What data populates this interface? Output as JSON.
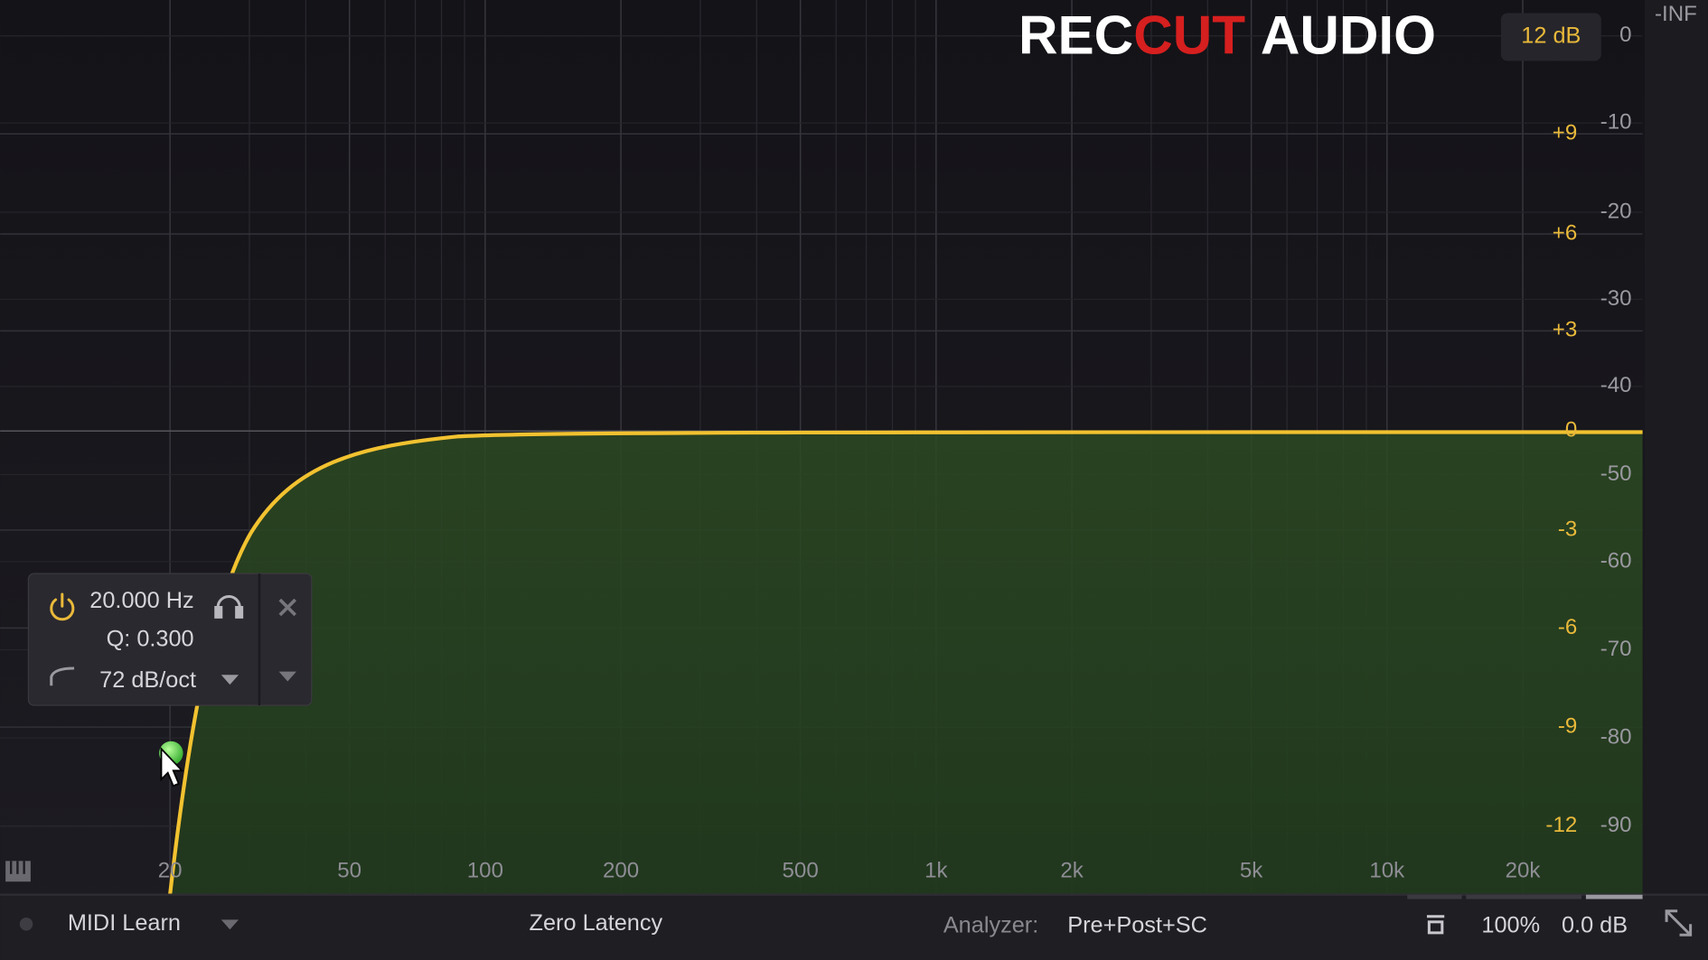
{
  "logo": {
    "left": "REC",
    "accent": "CUT",
    "right": "AUDIO"
  },
  "range_button": "12 dB",
  "gain_scale": [
    "+9",
    "+6",
    "+3",
    "0",
    "-3",
    "-6",
    "-9",
    "-12"
  ],
  "analyzer_scale": [
    "-INF",
    "0",
    "-10",
    "-20",
    "-30",
    "-40",
    "-50",
    "-60",
    "-70",
    "-80",
    "-90"
  ],
  "freq_scale": [
    "20",
    "50",
    "100",
    "200",
    "500",
    "1k",
    "2k",
    "5k",
    "10k",
    "20k"
  ],
  "band_panel": {
    "frequency": "20.000 Hz",
    "q": "Q: 0.300",
    "slope": "72 dB/oct"
  },
  "bottom_bar": {
    "midi": "MIDI Learn",
    "latency": "Zero Latency",
    "analyzer_label": "Analyzer:",
    "analyzer_value": "Pre+Post+SC",
    "zoom": "100%",
    "output_gain": "0.0 dB"
  }
}
